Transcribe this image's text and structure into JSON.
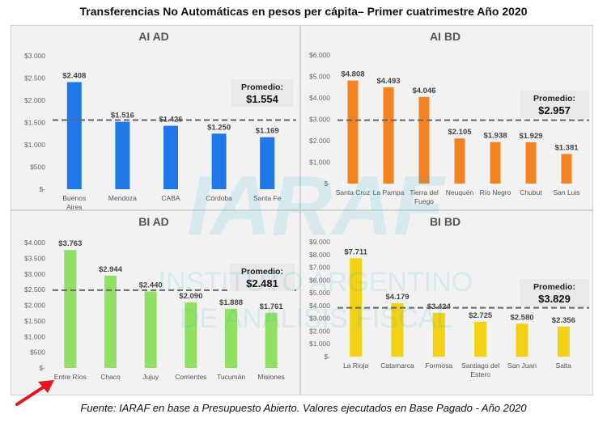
{
  "title": "Transferencias No Automáticas en pesos per cápita– Primer cuatrimestre Año 2020",
  "source": "Fuente: IARAF en base a Presupuesto Abierto. Valores ejecutados en Base Pagado - Año 2020",
  "watermark": {
    "logo": "IARAF",
    "line1": "INSTITUTO ARGENTINO",
    "line2": "DE ANALISIS FISCAL"
  },
  "chart_data": [
    {
      "type": "bar",
      "title": "AI AD",
      "color": "#1f77e8",
      "categories": [
        "Buenos Aires",
        "Mendoza",
        "CABA",
        "Córdoba",
        "Santa Fe"
      ],
      "values": [
        2408,
        1516,
        1426,
        1250,
        1169
      ],
      "value_labels": [
        "$2.408",
        "$1.516",
        "$1.426",
        "$1.250",
        "$1.169"
      ],
      "ylim": [
        0,
        3000
      ],
      "yticks": [
        0,
        500,
        1000,
        1500,
        2000,
        2500,
        3000
      ],
      "ytick_labels": [
        "$-",
        "$500",
        "$1.000",
        "$1.500",
        "$2.000",
        "$2.500",
        "$3.000"
      ],
      "average": 1554,
      "average_label": "Promedio:",
      "average_value": "$1.554"
    },
    {
      "type": "bar",
      "title": "AI BD",
      "color": "#f58220",
      "categories": [
        "Santa Cruz",
        "La Pampa",
        "Tierra del Fuego",
        "Neuquén",
        "Río Negro",
        "Chubut",
        "San Luis"
      ],
      "values": [
        4808,
        4493,
        4046,
        2105,
        1938,
        1929,
        1381
      ],
      "value_labels": [
        "$4.808",
        "$4.493",
        "$4.046",
        "$2.105",
        "$1.938",
        "$1.929",
        "$1.381"
      ],
      "ylim": [
        0,
        6000
      ],
      "yticks": [
        0,
        1000,
        2000,
        3000,
        4000,
        5000,
        6000
      ],
      "ytick_labels": [
        "$-",
        "$1.000",
        "$2.000",
        "$3.000",
        "$4.000",
        "$5.000",
        "$6.000"
      ],
      "average": 2957,
      "average_label": "Promedio:",
      "average_value": "$2.957"
    },
    {
      "type": "bar",
      "title": "BI AD",
      "color": "#92e063",
      "categories": [
        "Entre Ríos",
        "Chaco",
        "Jujuy",
        "Corrientes",
        "Tucumán",
        "Misiones"
      ],
      "values": [
        3763,
        2944,
        2440,
        2090,
        1888,
        1761
      ],
      "value_labels": [
        "$3.763",
        "$2.944",
        "$2.440",
        "$2.090",
        "$1.888",
        "$1.761"
      ],
      "ylim": [
        0,
        4000
      ],
      "yticks": [
        0,
        500,
        1000,
        1500,
        2000,
        2500,
        3000,
        3500,
        4000
      ],
      "ytick_labels": [
        "$-",
        "$500",
        "$1.000",
        "$1.500",
        "$2.000",
        "$2.500",
        "$3.000",
        "$3.500",
        "$4.000"
      ],
      "average": 2481,
      "average_label": "Promedio:",
      "average_value": "$2.481"
    },
    {
      "type": "bar",
      "title": "BI BD",
      "color": "#f2d114",
      "categories": [
        "La Rioja",
        "Catamarca",
        "Formosa",
        "Santiago del Estero",
        "San Juan",
        "Salta"
      ],
      "values": [
        7711,
        4179,
        3424,
        2725,
        2580,
        2356
      ],
      "value_labels": [
        "$7.711",
        "$4.179",
        "$3.424",
        "$2.725",
        "$2.580",
        "$2.356"
      ],
      "ylim": [
        0,
        9000
      ],
      "yticks": [
        0,
        1000,
        2000,
        3000,
        4000,
        5000,
        6000,
        7000,
        8000,
        9000
      ],
      "ytick_labels": [
        "$-",
        "$1.000",
        "$2.000",
        "$3.000",
        "$4.000",
        "$5.000",
        "$6.000",
        "$7.000",
        "$8.000",
        "$9.000"
      ],
      "average": 3829,
      "average_label": "Promedio:",
      "average_value": "$3.829"
    }
  ]
}
